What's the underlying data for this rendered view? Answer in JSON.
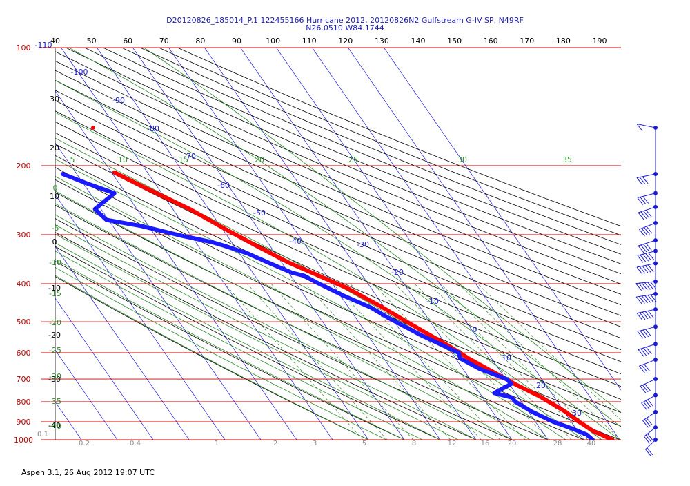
{
  "chart_data": {
    "type": "line",
    "title_line1": "D20120826_185014_P.1 122455166 Hurricane 2012, 20120826N2 Gulfstream G-IV SP, N49RF",
    "title_line2": "N26.0510 W84.1744",
    "footer": "Aspen 3.1, 26 Aug 2012  19:07 UTC",
    "pressure_levels": [
      100,
      200,
      300,
      400,
      500,
      600,
      700,
      800,
      900,
      1000
    ],
    "top_axis_ticks": [
      40,
      50,
      60,
      70,
      80,
      90,
      100,
      110,
      120,
      130,
      140,
      150,
      160,
      170,
      180,
      190
    ],
    "top_left_label": "-110",
    "isotherm_labels": [
      -100,
      -90,
      -80,
      -70,
      -60,
      -50,
      -40,
      -30,
      -20,
      -10,
      0,
      10,
      20,
      30
    ],
    "dry_adiabat_labels_left": [
      30,
      20,
      10,
      0,
      -10,
      -20,
      -30,
      -40
    ],
    "saturation_adiabat_labels_top": [
      5,
      10,
      15,
      20,
      25,
      30,
      35
    ],
    "saturation_adiabat_labels_left": [
      0,
      -5,
      -10,
      -15,
      -20,
      -25,
      -30,
      -35,
      -40
    ],
    "mixing_ratio_labels": [
      "0.1",
      "0.2",
      "0.4",
      "1",
      "2",
      "3",
      "5",
      "8",
      "12",
      "16",
      "20",
      "28",
      "40"
    ],
    "series": [
      {
        "name": "Temperature",
        "color": "#ff0000",
        "pressure": [
          208,
          228,
          258,
          293,
          323,
          353,
          378,
          410,
          458,
          510,
          580,
          620,
          680,
          725,
          775,
          845,
          905,
          950,
          1000
        ],
        "value": [
          -59.2,
          -53.5,
          -45.3,
          -38.7,
          -33.3,
          -28.1,
          -22.9,
          -16.7,
          -10.7,
          -5.6,
          0.8,
          3.6,
          8.5,
          11.9,
          16.1,
          20.2,
          22.4,
          24.3,
          28.0
        ]
      },
      {
        "name": "Dew point",
        "color": "#1a1aff",
        "pressure": [
          210,
          222,
          235,
          258,
          275,
          285,
          302,
          313,
          320,
          335,
          355,
          375,
          382,
          395,
          430,
          460,
          490,
          540,
          600,
          620,
          660,
          700,
          720,
          760,
          780,
          800,
          850,
          900,
          935,
          970,
          1000
        ],
        "value": [
          -73.9,
          -69.0,
          -63.2,
          -71.7,
          -70.6,
          -62.0,
          -52.7,
          -45.6,
          -42.8,
          -37.7,
          -33.4,
          -29.1,
          -26.2,
          -24.4,
          -19.0,
          -13.8,
          -10.8,
          -5.3,
          1.9,
          1.3,
          4.7,
          10.2,
          10.6,
          4.1,
          8.1,
          8.3,
          11.1,
          15.0,
          18.8,
          21.8,
          22.5
        ]
      }
    ],
    "isolated_point": {
      "name": "Temperature",
      "pressure": 160,
      "value": -56.5
    },
    "wind_profile": {
      "pressure": [
        160,
        210,
        235,
        255,
        280,
        310,
        330,
        355,
        395,
        425,
        465,
        515,
        570,
        625,
        700,
        770,
        850,
        930,
        1000
      ],
      "speed_kt": [
        10,
        25,
        30,
        35,
        35,
        40,
        45,
        45,
        60,
        55,
        45,
        40,
        35,
        30,
        30,
        35,
        30,
        25,
        20
      ],
      "dir_deg": [
        290,
        250,
        245,
        240,
        235,
        240,
        245,
        250,
        260,
        255,
        250,
        245,
        240,
        235,
        230,
        225,
        220,
        215,
        210
      ]
    }
  }
}
